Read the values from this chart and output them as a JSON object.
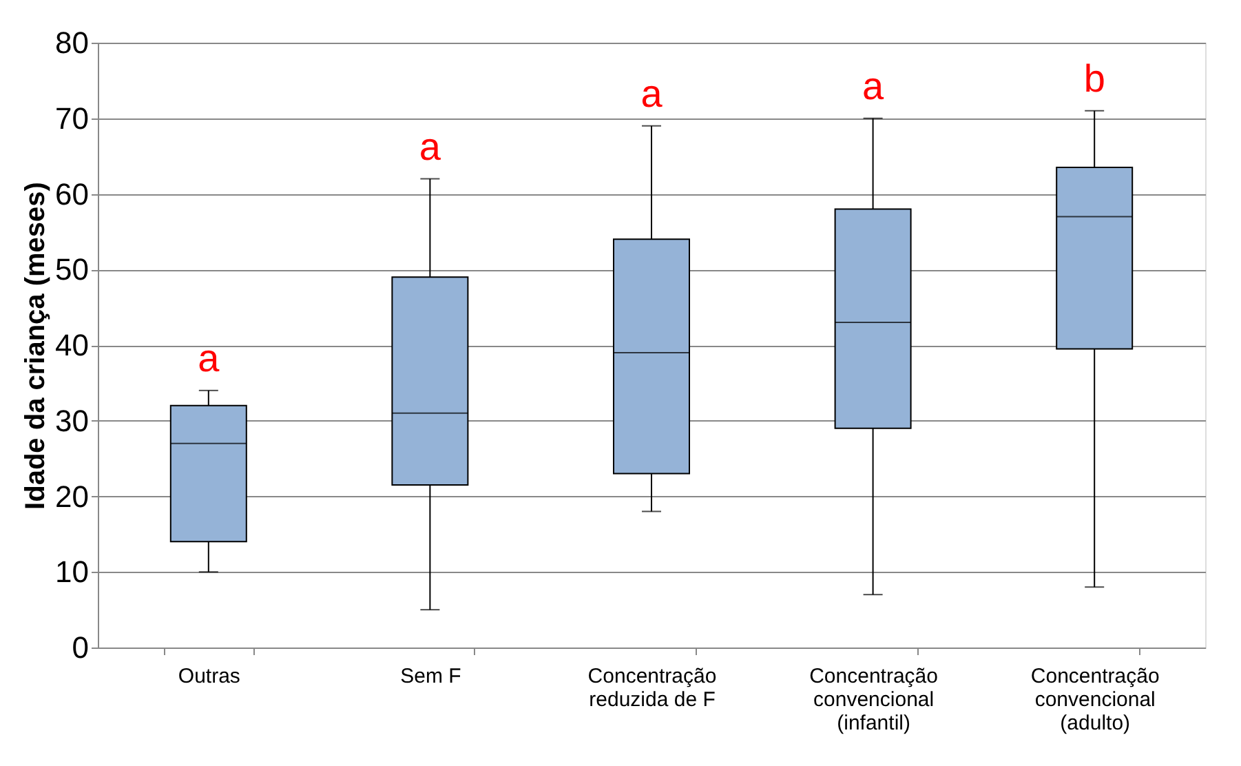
{
  "chart_data": {
    "type": "box",
    "ylabel": "Idade da criança (meses)",
    "categories": [
      "Outras",
      "Sem F",
      "Concentração\nreduzida de F",
      "Concentração\nconvencional\n(infantil)",
      "Concentração\nconvencional\n(adulto)"
    ],
    "boxes": [
      {
        "low": 10,
        "q1": 14,
        "median": 27,
        "q3": 32,
        "high": 34
      },
      {
        "low": 5,
        "q1": 21.5,
        "median": 31,
        "q3": 49,
        "high": 62
      },
      {
        "low": 18,
        "q1": 23,
        "median": 39,
        "q3": 54,
        "high": 69
      },
      {
        "low": 7,
        "q1": 29,
        "median": 43,
        "q3": 58,
        "high": 70
      },
      {
        "low": 8,
        "q1": 39.5,
        "median": 57,
        "q3": 63.5,
        "high": 71
      }
    ],
    "color": "#95b3d7",
    "ylim": [
      0,
      80
    ],
    "yticks": [
      0,
      10,
      20,
      30,
      40,
      50,
      60,
      70,
      80
    ],
    "grid": "y",
    "annotations": [
      "a",
      "a",
      "a",
      "a",
      "b"
    ]
  }
}
